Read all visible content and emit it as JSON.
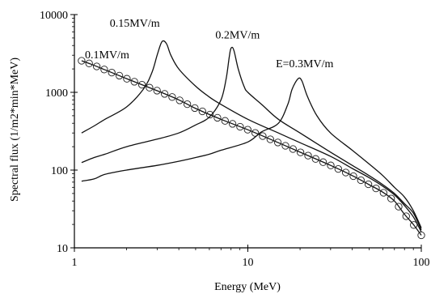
{
  "chart_data": {
    "type": "line",
    "xlabel": "Energy (MeV)",
    "ylabel": "Spectral flux (1/m2*min*MeV)",
    "xscale": "log",
    "yscale": "log",
    "xlim": [
      1,
      100
    ],
    "ylim": [
      10,
      10000
    ],
    "x_ticks": [
      {
        "value": 1,
        "label": "1"
      },
      {
        "value": 10,
        "label": "10"
      },
      {
        "value": 100,
        "label": "100"
      }
    ],
    "y_ticks": [
      {
        "value": 10,
        "label": "10"
      },
      {
        "value": 100,
        "label": "100"
      },
      {
        "value": 1000,
        "label": "1000"
      },
      {
        "value": 10000,
        "label": "10000"
      }
    ],
    "grid": false,
    "legend": "none",
    "series": [
      {
        "name": "0.1MV/m",
        "marker": "open-circle",
        "points": [
          [
            1.1,
            2550
          ],
          [
            1.25,
            2300
          ],
          [
            1.5,
            1950
          ],
          [
            2,
            1500
          ],
          [
            3,
            1050
          ],
          [
            4,
            800
          ],
          [
            5,
            620
          ],
          [
            7,
            450
          ],
          [
            10,
            330
          ],
          [
            15,
            225
          ],
          [
            20,
            170
          ],
          [
            30,
            115
          ],
          [
            40,
            85
          ],
          [
            50,
            65
          ],
          [
            60,
            52
          ],
          [
            70,
            40
          ],
          [
            80,
            27
          ],
          [
            90,
            20
          ],
          [
            100,
            14.5
          ]
        ]
      },
      {
        "name": "0.15MV/m",
        "marker": "none",
        "points": [
          [
            1.1,
            300
          ],
          [
            1.3,
            370
          ],
          [
            1.5,
            450
          ],
          [
            2,
            650
          ],
          [
            2.5,
            1100
          ],
          [
            2.8,
            1800
          ],
          [
            3.0,
            3000
          ],
          [
            3.2,
            4500
          ],
          [
            3.4,
            4200
          ],
          [
            3.6,
            3000
          ],
          [
            4,
            2000
          ],
          [
            5,
            1200
          ],
          [
            6,
            870
          ],
          [
            7,
            700
          ],
          [
            10,
            450
          ],
          [
            15,
            300
          ],
          [
            20,
            225
          ],
          [
            30,
            150
          ],
          [
            40,
            105
          ],
          [
            50,
            80
          ],
          [
            60,
            62
          ],
          [
            70,
            48
          ],
          [
            80,
            35
          ],
          [
            90,
            25
          ],
          [
            100,
            16
          ]
        ]
      },
      {
        "name": "0.2MV/m",
        "marker": "none",
        "points": [
          [
            1.1,
            125
          ],
          [
            1.3,
            145
          ],
          [
            1.5,
            160
          ],
          [
            2,
            200
          ],
          [
            3,
            250
          ],
          [
            4,
            300
          ],
          [
            5,
            380
          ],
          [
            6,
            480
          ],
          [
            7,
            800
          ],
          [
            7.5,
            1500
          ],
          [
            7.8,
            2800
          ],
          [
            8.0,
            3700
          ],
          [
            8.3,
            3500
          ],
          [
            8.8,
            2000
          ],
          [
            9.5,
            1200
          ],
          [
            10,
            1000
          ],
          [
            12,
            700
          ],
          [
            15,
            450
          ],
          [
            20,
            300
          ],
          [
            30,
            170
          ],
          [
            40,
            115
          ],
          [
            50,
            85
          ],
          [
            60,
            65
          ],
          [
            70,
            50
          ],
          [
            80,
            37
          ],
          [
            90,
            28
          ],
          [
            100,
            17
          ]
        ]
      },
      {
        "name": "E=0.3MV/m",
        "marker": "none",
        "points": [
          [
            1.1,
            72
          ],
          [
            1.3,
            77
          ],
          [
            1.5,
            88
          ],
          [
            2,
            100
          ],
          [
            3,
            115
          ],
          [
            4,
            130
          ],
          [
            5,
            145
          ],
          [
            6,
            160
          ],
          [
            7,
            180
          ],
          [
            10,
            230
          ],
          [
            12,
            310
          ],
          [
            15,
            400
          ],
          [
            17,
            700
          ],
          [
            18,
            1100
          ],
          [
            19.5,
            1500
          ],
          [
            20.5,
            1400
          ],
          [
            22,
            900
          ],
          [
            25,
            500
          ],
          [
            30,
            300
          ],
          [
            40,
            180
          ],
          [
            50,
            120
          ],
          [
            60,
            85
          ],
          [
            70,
            60
          ],
          [
            80,
            45
          ],
          [
            90,
            30
          ],
          [
            100,
            18
          ]
        ]
      }
    ],
    "annotations": [
      {
        "text": "0.1MV/m",
        "x": 1.15,
        "y": 2750,
        "series": 0
      },
      {
        "text": "0.15MV/m",
        "x": 1.6,
        "y": 7000,
        "series": 1
      },
      {
        "text": "0.2MV/m",
        "x": 6.5,
        "y": 4900,
        "series": 2
      },
      {
        "text": "E=0.3MV/m",
        "x": 14.5,
        "y": 2100,
        "series": 3
      }
    ]
  }
}
